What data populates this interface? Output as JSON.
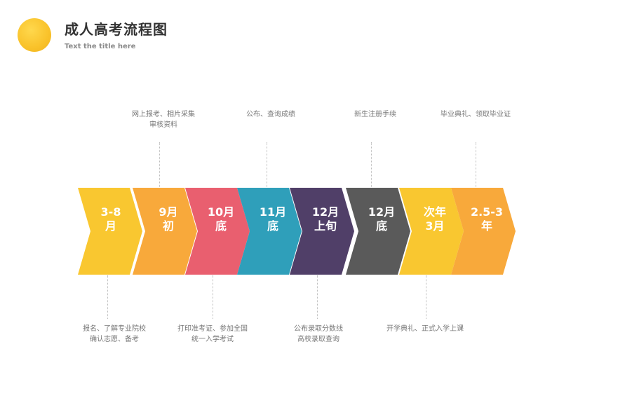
{
  "header": {
    "title": "成人高考流程图",
    "subtitle": "Text the title here"
  },
  "steps": [
    {
      "label": "3-8\n月",
      "color": "#f9c730"
    },
    {
      "label": "9月\n初",
      "color": "#f8a93b"
    },
    {
      "label": "10月\n底",
      "color": "#e95f6f"
    },
    {
      "label": "11月\n底",
      "color": "#2f9fba"
    },
    {
      "label": "12月\n上旬",
      "color": "#503f68"
    },
    {
      "label": "12月\n底",
      "color": "#5a5a5a"
    },
    {
      "label": "次年\n3月",
      "color": "#f9c730"
    },
    {
      "label": "2.5-3\n年",
      "color": "#f8a93b"
    }
  ],
  "notes_top": [
    {
      "text": "网上报考、相片采集\n审核资料"
    },
    {
      "text": "公布、查询成绩"
    },
    {
      "text": "新生注册手续"
    },
    {
      "text": "毕业典礼、领取毕业证"
    }
  ],
  "notes_bottom": [
    {
      "text": "报名、了解专业院校\n确认志愿、备考"
    },
    {
      "text": "打印准考证、参加全国\n统一入学考试"
    },
    {
      "text": "公布录取分数线\n高校录取查询"
    },
    {
      "text": "开学典礼、正式入学上课"
    }
  ]
}
